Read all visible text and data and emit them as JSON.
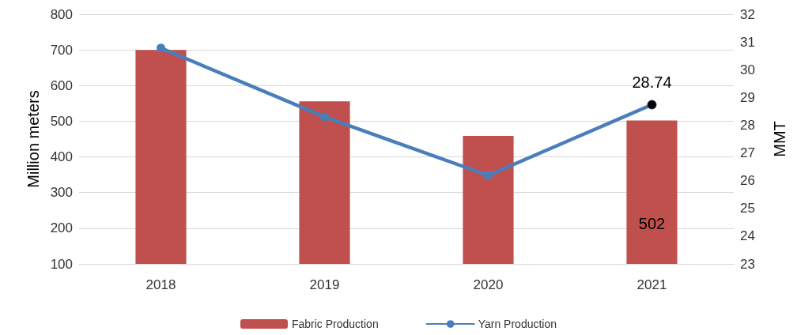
{
  "chart_data": {
    "type": "bar",
    "categories": [
      "2018",
      "2019",
      "2020",
      "2021"
    ],
    "ylabel": "Million meters",
    "y2label": "MMT",
    "ylim": [
      100,
      800
    ],
    "yticks": [
      100,
      200,
      300,
      400,
      500,
      600,
      700,
      800
    ],
    "y2lim": [
      23,
      32
    ],
    "y2ticks": [
      23,
      24,
      25,
      26,
      27,
      28,
      29,
      30,
      31,
      32
    ],
    "grid": "y",
    "legend": "bottom",
    "marker": "circle",
    "line_style": "solid",
    "series": [
      {
        "name": "Fabric Production",
        "color": "#c0504d",
        "values": [
          700,
          556,
          459,
          502
        ],
        "value_labels": [
          null,
          null,
          null,
          "502"
        ]
      },
      {
        "name": "Yarn Production",
        "type": "line",
        "axis": "y2",
        "color": "#4a7ebb",
        "colors": [
          "#4a7ebb",
          "#4a7ebb",
          "#4a7ebb",
          "#000000"
        ],
        "values": [
          30.78,
          28.3,
          26.19,
          28.74
        ],
        "value_labels": [
          null,
          null,
          null,
          "28.74"
        ]
      }
    ]
  }
}
